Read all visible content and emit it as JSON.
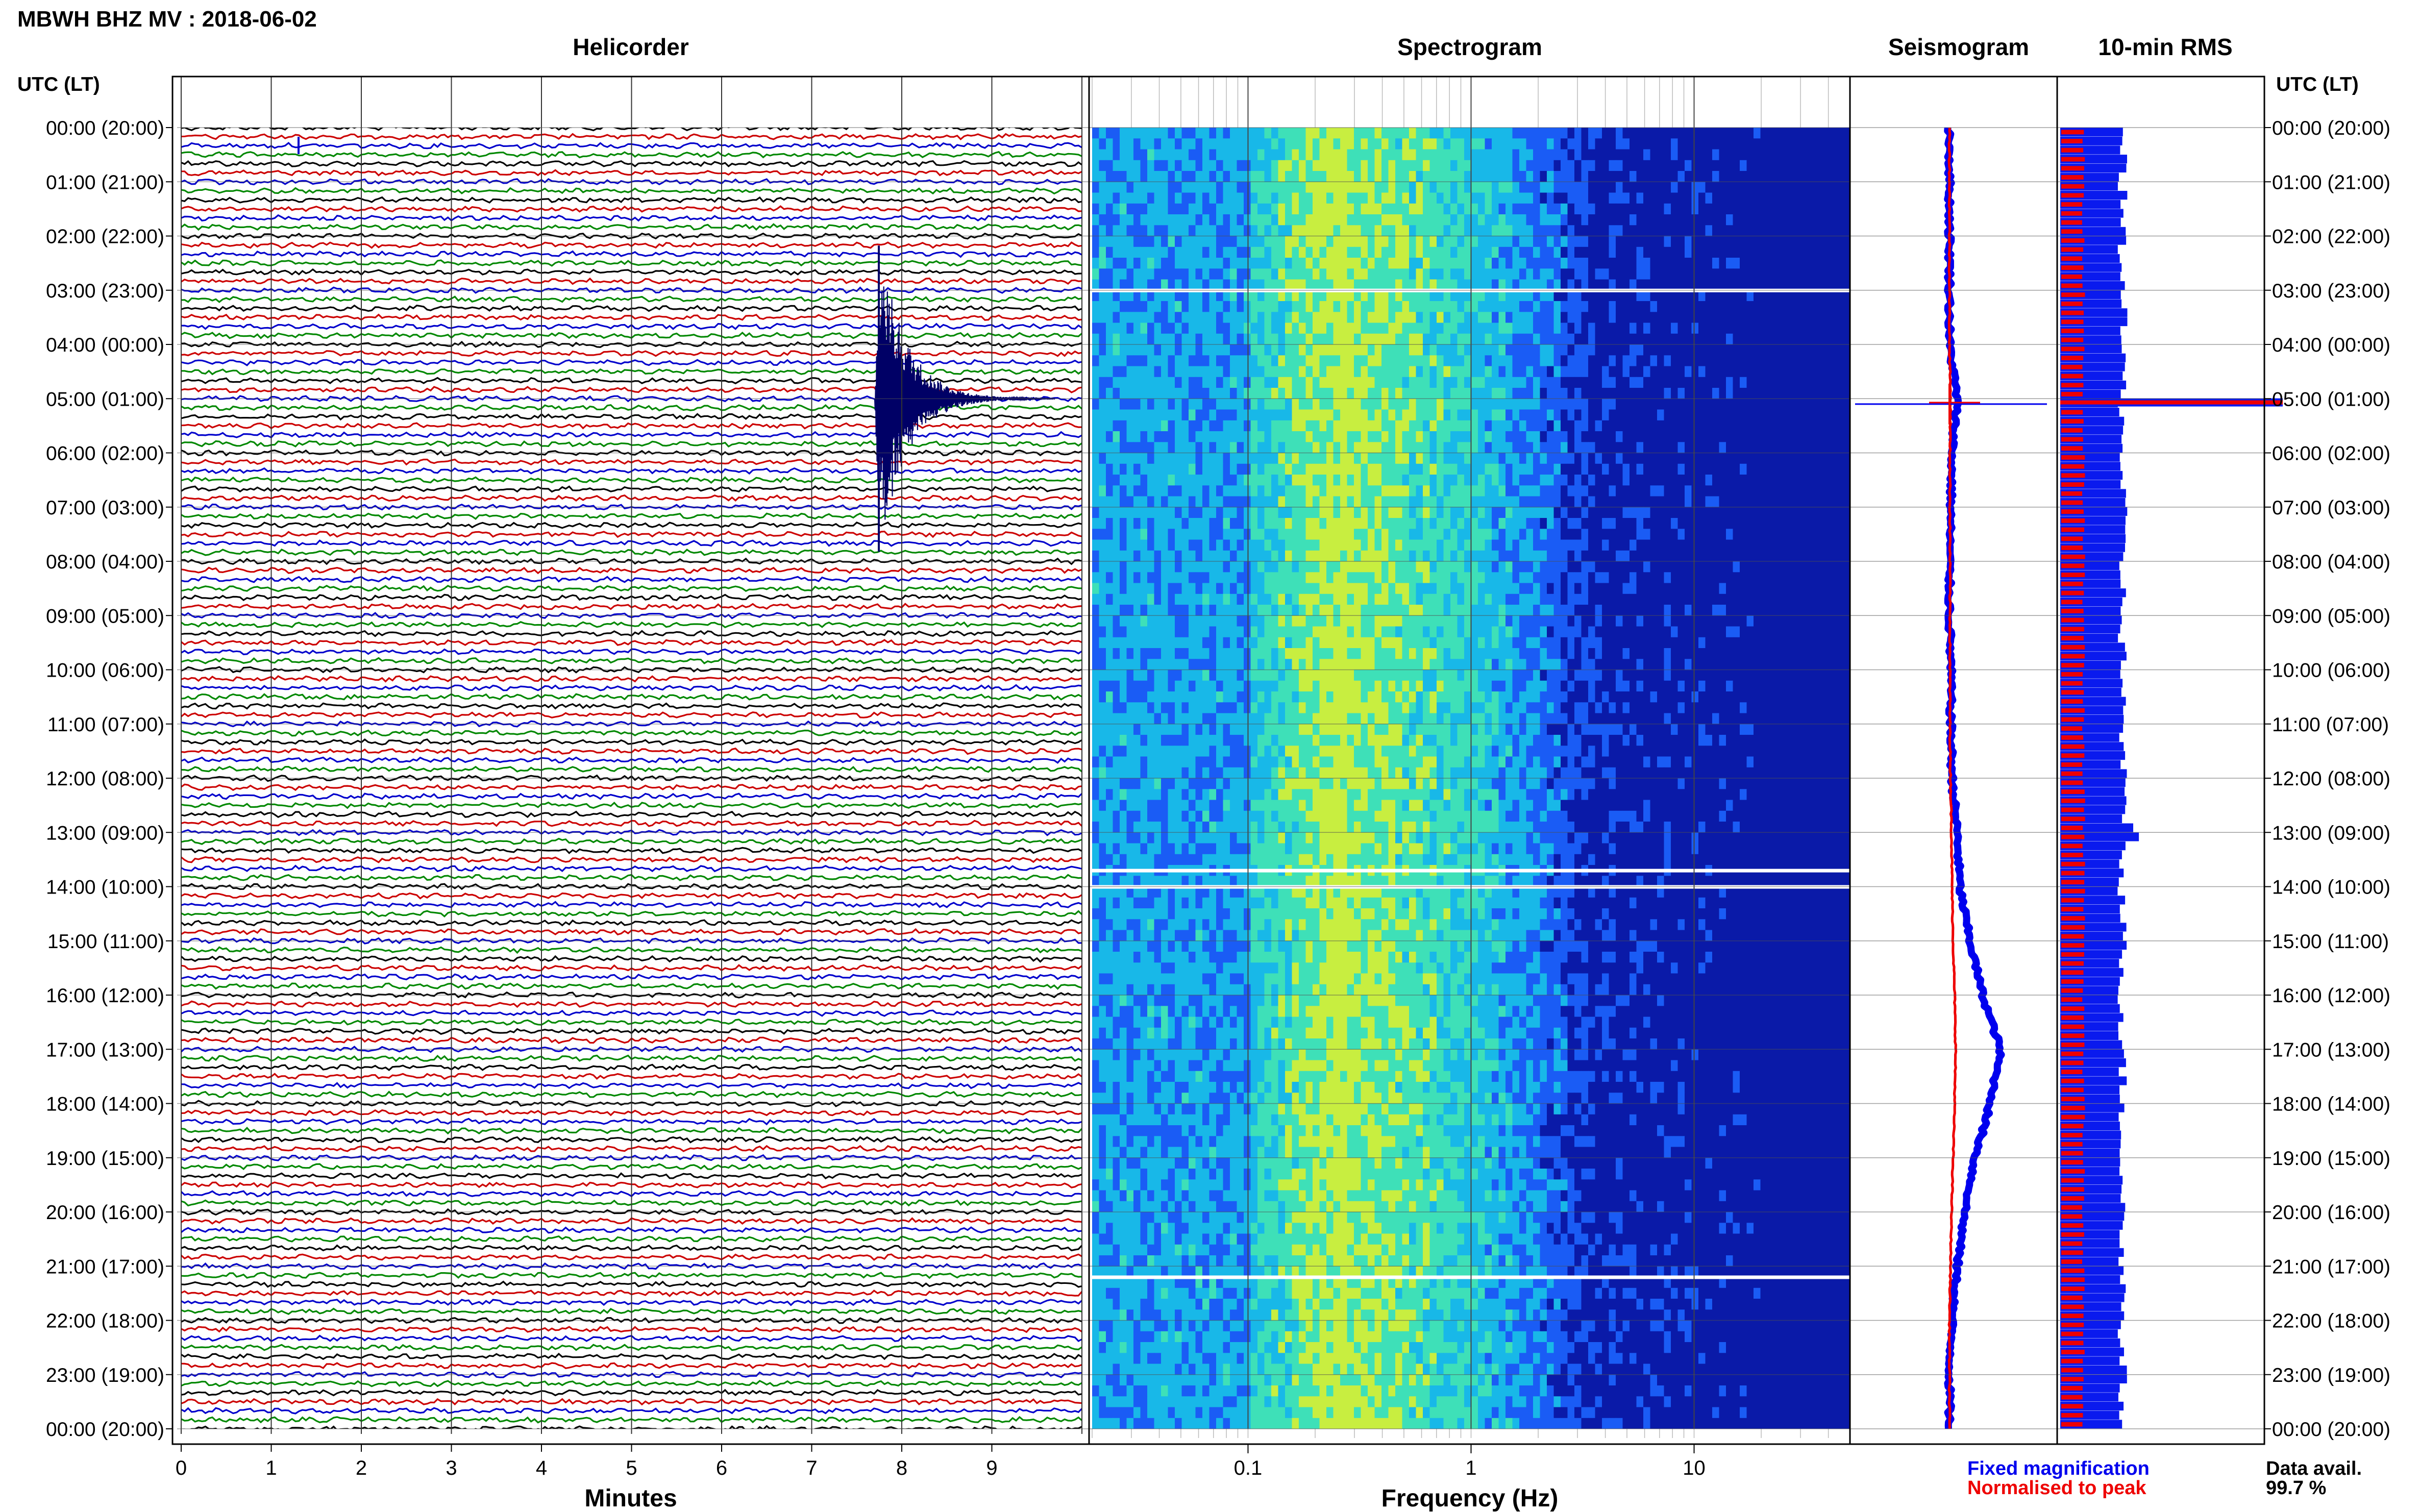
{
  "figure_title": "MBWH BHZ MV : 2018-06-02",
  "utc_header": "UTC (LT)",
  "panels": {
    "helicorder": "Helicorder",
    "spectrogram": "Spectrogram",
    "seismogram": "Seismogram",
    "rms": "10-min RMS"
  },
  "legend": {
    "fixed": "Fixed magnification",
    "normalised": "Normalised to peak",
    "fixed_color": "#0000ee",
    "normalised_color": "#ee0000"
  },
  "availability": {
    "label": "Data avail.",
    "value": "99.7 %"
  },
  "chart_data": [
    {
      "type": "line",
      "panel": "helicorder",
      "xlabel": "Minutes",
      "x_ticks": [
        "0",
        "1",
        "2",
        "3",
        "4",
        "5",
        "6",
        "7",
        "8",
        "9"
      ],
      "xlim": [
        0,
        10
      ],
      "rows": 145,
      "row_colors": [
        "#000000",
        "#cc0000",
        "#0000cc",
        "#008800"
      ],
      "event": {
        "hour": 5.0,
        "minute_onset": 7.7,
        "duration_min": 2.0
      },
      "y_ticks": [
        "00:00 (20:00)",
        "01:00 (21:00)",
        "02:00 (22:00)",
        "03:00 (23:00)",
        "04:00 (00:00)",
        "05:00 (01:00)",
        "06:00 (02:00)",
        "07:00 (03:00)",
        "08:00 (04:00)",
        "09:00 (05:00)",
        "10:00 (06:00)",
        "11:00 (07:00)",
        "12:00 (08:00)",
        "13:00 (09:00)",
        "14:00 (10:00)",
        "15:00 (11:00)",
        "16:00 (12:00)",
        "17:00 (13:00)",
        "18:00 (14:00)",
        "19:00 (15:00)",
        "20:00 (16:00)",
        "21:00 (17:00)",
        "22:00 (18:00)",
        "23:00 (19:00)",
        "00:00 (20:00)"
      ]
    },
    {
      "type": "heatmap",
      "panel": "spectrogram",
      "xlabel": "Frequency (Hz)",
      "x_scale": "log",
      "xlim": [
        0.02,
        50
      ],
      "x_ticks": [
        {
          "value": 0.1,
          "label": "0.1"
        },
        {
          "value": 1,
          "label": "1"
        },
        {
          "value": 10,
          "label": "10"
        }
      ],
      "gaps_hours": [
        3.0,
        13.7,
        14.0,
        21.2
      ],
      "colormap": [
        "#0a1aa8",
        "#1a5cf5",
        "#18b8e8",
        "#3ee0b8",
        "#c8ee40"
      ]
    },
    {
      "type": "line",
      "panel": "seismogram",
      "hours": [
        0,
        1,
        2,
        3,
        4,
        5,
        6,
        7,
        8,
        9,
        10,
        11,
        12,
        13,
        14,
        15,
        16,
        17,
        18,
        19,
        20,
        21,
        22,
        23,
        24
      ],
      "series": [
        {
          "name": "Fixed magnification",
          "values": [
            1.0,
            1.0,
            1.0,
            1.0,
            1.0,
            1.3,
            1.1,
            1.05,
            1.0,
            1.0,
            1.05,
            1.05,
            1.1,
            1.3,
            1.4,
            1.8,
            2.3,
            3.0,
            2.6,
            2.0,
            1.6,
            1.3,
            1.1,
            1.0,
            1.0
          ]
        },
        {
          "name": "Normalised to peak",
          "values": [
            1.0,
            1.0,
            1.0,
            1.0,
            1.0,
            1.1,
            1.05,
            1.05,
            1.05,
            1.05,
            1.05,
            1.05,
            1.1,
            1.2,
            1.25,
            1.35,
            1.5,
            1.6,
            1.5,
            1.35,
            1.2,
            1.1,
            1.0,
            1.0,
            1.0
          ]
        }
      ],
      "spike_hour": 5.1
    },
    {
      "type": "bar",
      "panel": "rms",
      "bin_minutes": 10,
      "red_level": 0.18,
      "blue_level": 0.5,
      "spike_hour": 5.05,
      "peak_hour": 13.0
    }
  ]
}
